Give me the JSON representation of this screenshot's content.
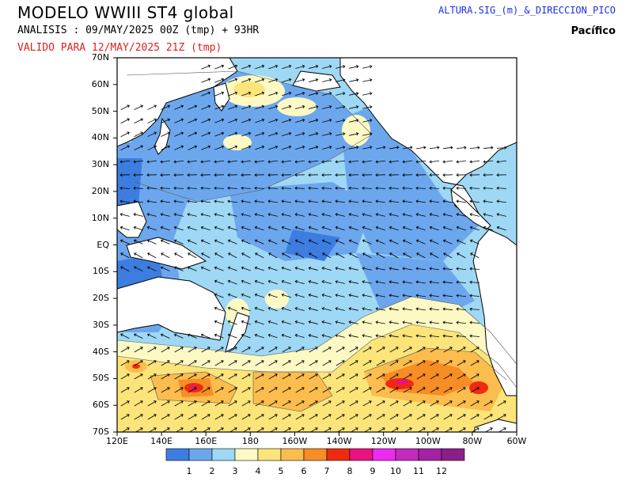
{
  "header": {
    "title": "MODELO WWIII ST4 global",
    "analysis": "ANALISIS : 09/MAY/2025 00Z  (tmp) + 93HR",
    "valid": "VALIDO PARA  12/MAY/2025 21Z  (tmp)",
    "variable": "ALTURA.SIG_(m)_&_DIRECCION_PICO",
    "region": "Pacífico"
  },
  "map": {
    "lat_labels": [
      "70N",
      "60N",
      "50N",
      "40N",
      "30N",
      "20N",
      "10N",
      "EQ",
      "10S",
      "20S",
      "30S",
      "40S",
      "50S",
      "60S",
      "70S"
    ],
    "lon_labels": [
      "120E",
      "140E",
      "160E",
      "180",
      "160W",
      "140W",
      "120W",
      "100W",
      "80W",
      "60W"
    ]
  },
  "legend": {
    "values": [
      "1",
      "2",
      "3",
      "4",
      "5",
      "6",
      "7",
      "8",
      "9",
      "10",
      "11",
      "12"
    ],
    "colors": [
      "#3e7de0",
      "#6ca7ee",
      "#9ed8f4",
      "#fdf9c4",
      "#fbe47a",
      "#fbbd4d",
      "#f68d25",
      "#ef2a10",
      "#ea1280",
      "#ec2bef",
      "#c22bbd",
      "#a422a3",
      "#8a1f8a"
    ]
  }
}
